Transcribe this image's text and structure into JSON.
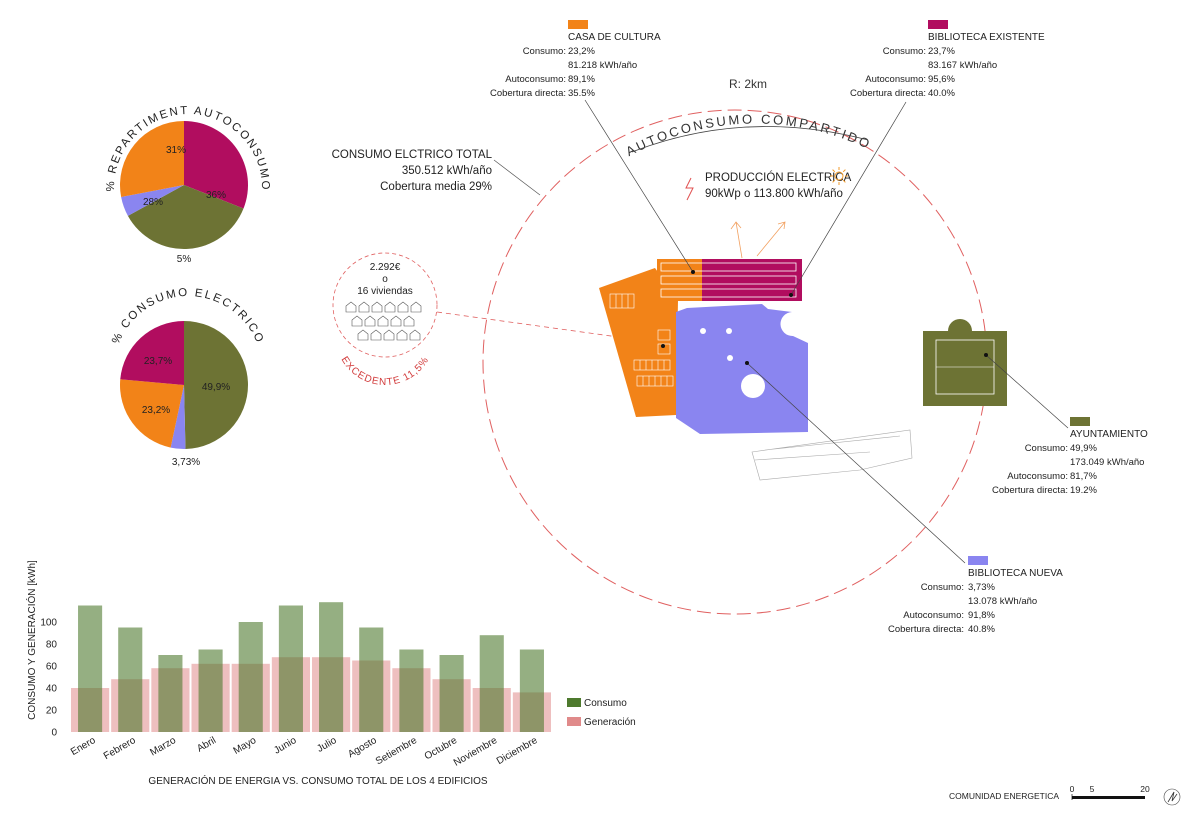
{
  "colors": {
    "casa": "#f28318",
    "biblioteca_existente": "#b10d5f",
    "ayuntamiento": "#6d7334",
    "biblioteca_nueva": "#8a85f0",
    "circle": "#e06060",
    "consumo": "#4e7a2e",
    "generacion": "#e08a8a"
  },
  "pie1": {
    "title": "% REPARTIMENT AUTOCONSUMO",
    "slices": [
      {
        "label": "31%",
        "value": 31,
        "color_key": "biblioteca_existente"
      },
      {
        "label": "36%",
        "value": 36,
        "color_key": "ayuntamiento"
      },
      {
        "label": "5%",
        "value": 5,
        "color_key": "biblioteca_nueva"
      },
      {
        "label": "28%",
        "value": 28,
        "color_key": "casa"
      }
    ]
  },
  "pie2": {
    "title": "% CONSUMO ELECTRICO",
    "slices": [
      {
        "label": "49,9%",
        "value": 49.9,
        "color_key": "ayuntamiento"
      },
      {
        "label": "3,73%",
        "value": 3.73,
        "color_key": "biblioteca_nueva"
      },
      {
        "label": "23,2%",
        "value": 23.2,
        "color_key": "casa"
      },
      {
        "label": "23,7%",
        "value": 23.7,
        "color_key": "biblioteca_existente"
      }
    ]
  },
  "diagram": {
    "radius_label": "R: 2km",
    "circle_title": "AUTOCONSUMO COMPARTIDO",
    "total": {
      "title": "CONSUMO ELCTRICO TOTAL",
      "line1": "350.512 kWh/año",
      "line2": "Cobertura media 29%"
    },
    "production": {
      "title": "PRODUCCIÓN ELECTRICA",
      "value": "90kWp o 113.800 kWh/año"
    },
    "excedente": {
      "amount": "2.292€",
      "o": "o",
      "viviendas": "16 viviendas",
      "label": "EXCEDENTE 11,5%"
    }
  },
  "buildings": {
    "casa": {
      "name": "CASA DE CULTURA",
      "rows": [
        {
          "k": "Consumo:",
          "v": "23,2%"
        },
        {
          "k": "",
          "v": "81.218 kWh/año"
        },
        {
          "k": "Autoconsumo:",
          "v": "89,1%"
        },
        {
          "k": "Cobertura directa:",
          "v": "35.5%"
        }
      ]
    },
    "biblioteca_existente": {
      "name": "BIBLIOTECA EXISTENTE",
      "rows": [
        {
          "k": "Consumo:",
          "v": "23,7%"
        },
        {
          "k": "",
          "v": "83.167 kWh/año"
        },
        {
          "k": "Autoconsumo:",
          "v": "95,6%"
        },
        {
          "k": "Cobertura directa:",
          "v": "40.0%"
        }
      ]
    },
    "ayuntamiento": {
      "name": "AYUNTAMIENTO",
      "rows": [
        {
          "k": "Consumo:",
          "v": "49,9%"
        },
        {
          "k": "",
          "v": "173.049 kWh/año"
        },
        {
          "k": "Autoconsumo:",
          "v": "81,7%"
        },
        {
          "k": "Cobertura directa:",
          "v": "19.2%"
        }
      ]
    },
    "biblioteca_nueva": {
      "name": "BIBLIOTECA NUEVA",
      "rows": [
        {
          "k": "Consumo:",
          "v": "3,73%"
        },
        {
          "k": "",
          "v": "13.078 kWh/año"
        },
        {
          "k": "Autoconsumo:",
          "v": "91,8%"
        },
        {
          "k": "Cobertura directa:",
          "v": "40.8%"
        }
      ]
    }
  },
  "chart_data": {
    "type": "bar",
    "title": "GENERACIÓN DE ENERGIA VS. CONSUMO TOTAL DE LOS 4 EDIFICIOS",
    "ylabel": "CONSUMO Y GENERACIÓN [kWh]",
    "xlabel": "",
    "ylim": [
      0,
      120
    ],
    "yticks": [
      0,
      20,
      40,
      60,
      80,
      100
    ],
    "categories": [
      "Enero",
      "Febrero",
      "Marzo",
      "Abril",
      "Mayo",
      "Junio",
      "Julio",
      "Agosto",
      "Setiembre",
      "Octubre",
      "Noviembre",
      "Diciembre"
    ],
    "series": [
      {
        "name": "Consumo",
        "color_key": "consumo",
        "values": [
          115,
          95,
          70,
          75,
          100,
          115,
          118,
          95,
          75,
          70,
          88,
          75
        ]
      },
      {
        "name": "Generación",
        "color_key": "generacion",
        "values": [
          40,
          48,
          58,
          62,
          62,
          68,
          68,
          65,
          58,
          48,
          40,
          36
        ]
      }
    ],
    "legend": [
      "Consumo",
      "Generación"
    ]
  },
  "footer": {
    "label": "COMUNIDAD ENERGETICA",
    "scale": [
      "0",
      "5",
      "20"
    ]
  }
}
